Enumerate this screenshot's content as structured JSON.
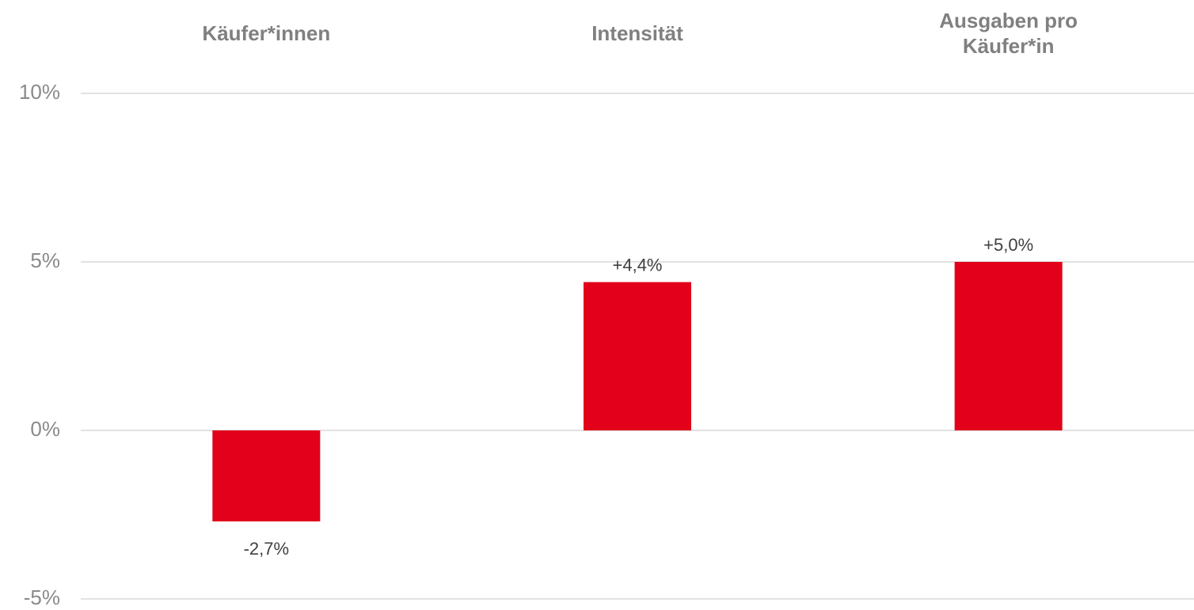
{
  "chart_data": {
    "type": "bar",
    "categories": [
      "Käufer*innen",
      "Intensität",
      "Ausgaben pro Käufer*in"
    ],
    "category_label_lines": [
      [
        "Käufer*innen"
      ],
      [
        "Intensität"
      ],
      [
        "Ausgaben pro",
        "Käufer*in"
      ]
    ],
    "values": [
      -2.7,
      4.4,
      5.0
    ],
    "data_labels": [
      "-2,7%",
      "+4,4%",
      "+5,0%"
    ],
    "yticks": [
      10,
      5,
      0,
      -5
    ],
    "ytick_labels": [
      "10%",
      "5%",
      "0%",
      "-5%"
    ],
    "ylim": [
      -5,
      10
    ],
    "grid": true,
    "category_labels_position": "top",
    "colors": {
      "bar": "#e2001a",
      "grid": "#d9d9d9",
      "tick_text": "#8a8a8a",
      "category_text": "#808080",
      "data_label_text": "#404040"
    }
  }
}
